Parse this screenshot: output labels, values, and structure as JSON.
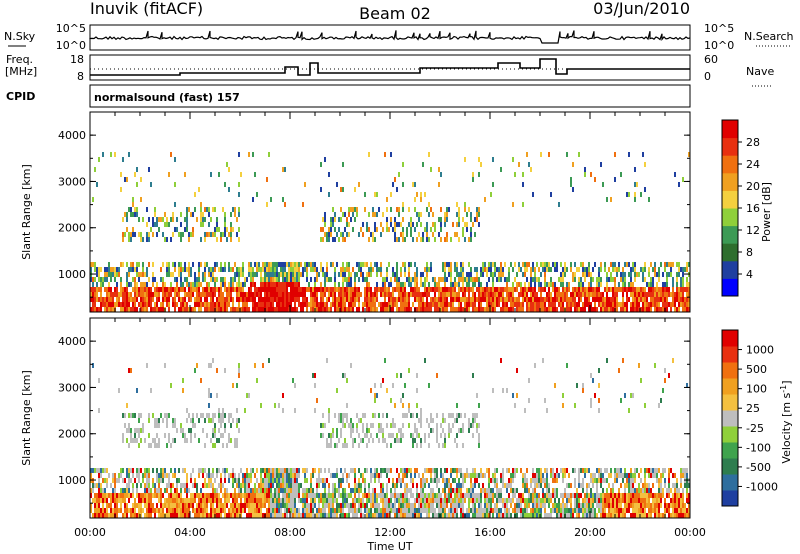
{
  "header": {
    "station": "Inuvik (fitACF)",
    "beam": "Beam 02",
    "date": "03/Jun/2010"
  },
  "sky_panel": {
    "left_label": "N.Sky",
    "right_label": "N.Search",
    "left_ticks": [
      "10^5",
      "10^0"
    ],
    "right_ticks": [
      "10^5",
      "10^0"
    ]
  },
  "freq_panel": {
    "left_label_line1": "Freq.",
    "left_label_line2": "[MHz]",
    "right_label": "Nave",
    "left_ticks": [
      "18",
      "8"
    ],
    "right_ticks": [
      "60",
      "0"
    ]
  },
  "cpid_panel": {
    "label": "CPID",
    "program": "normalsound (fast)  157"
  },
  "chart_data": [
    {
      "type": "heatmap",
      "name": "power",
      "ylabel": "Slant Range [km]",
      "yticks": [
        "4000",
        "3000",
        "2000",
        "1000"
      ],
      "ylim": [
        180,
        4500
      ],
      "x_ticks": [
        "00:00",
        "04:00",
        "08:00",
        "12:00",
        "16:00",
        "20:00",
        "00:00"
      ],
      "colorbar_label": "Power [dB]",
      "colorbar_ticks": [
        "28",
        "24",
        "20",
        "16",
        "12",
        "8",
        "4"
      ],
      "colorbar_colors": [
        "#0000ff",
        "#1f3fa0",
        "#2e6e2e",
        "#3c9a55",
        "#8fcf3a",
        "#f4d03f",
        "#f0a020",
        "#f07010",
        "#e83010",
        "#e00000"
      ]
    },
    {
      "type": "heatmap",
      "name": "velocity",
      "ylabel": "Slant Range [km]",
      "yticks": [
        "4000",
        "3000",
        "2000",
        "1000"
      ],
      "ylim": [
        180,
        4500
      ],
      "x_ticks": [
        "00:00",
        "04:00",
        "08:00",
        "12:00",
        "16:00",
        "20:00",
        "00:00"
      ],
      "xlabel": "Time UT",
      "colorbar_label": "Velocity  [m s",
      "colorbar_label_sup": "-1",
      "colorbar_label_end": "]",
      "colorbar_ticks": [
        "1000",
        "500",
        "100",
        "25",
        "-25",
        "-100",
        "-500",
        "-1000"
      ],
      "colorbar_colors": [
        "#1f3fa0",
        "#2e6e9e",
        "#2e7d4f",
        "#3fa34d",
        "#8fcf3a",
        "#bebebe",
        "#f4c040",
        "#f0a020",
        "#f07010",
        "#e83010",
        "#e00000"
      ]
    }
  ],
  "colors": {
    "power": [
      "#1f3fa0",
      "#2e7d8f",
      "#3c9a55",
      "#8fcf3a",
      "#f4d03f",
      "#f0a020",
      "#f07010",
      "#e83010",
      "#e00000"
    ],
    "velocity_neg": [
      "#e00000",
      "#f07010",
      "#f0a020",
      "#f4c040"
    ],
    "velocity_pos": [
      "#8fcf3a",
      "#3fa34d",
      "#2e7d4f",
      "#2e6e9e",
      "#1f3fa0"
    ],
    "velocity_zero": "#bebebe"
  }
}
